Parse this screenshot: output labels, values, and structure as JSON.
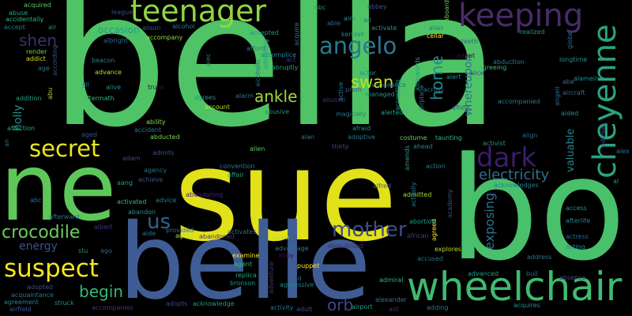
{
  "words": [
    {
      "text": "bella",
      "color": "#4fc466"
    },
    {
      "text": "sue",
      "color": "#e2e11a"
    },
    {
      "text": "bo",
      "color": "#49c06b"
    },
    {
      "text": "ne",
      "color": "#5ec75a"
    },
    {
      "text": "belle",
      "color": "#3f5d94"
    },
    {
      "text": "wheelchair",
      "color": "#3ebb70"
    },
    {
      "text": "cheyenne",
      "color": "#2aa27f"
    },
    {
      "text": "keeping",
      "color": "#472c6a"
    },
    {
      "text": "teenager",
      "color": "#8fd544"
    },
    {
      "text": "angelo",
      "color": "#2a788e"
    },
    {
      "text": "secret",
      "color": "#ece51b"
    },
    {
      "text": "suspect",
      "color": "#f4e61e"
    },
    {
      "text": "crocodile",
      "color": "#6ccd5a"
    },
    {
      "text": "mother",
      "color": "#3d4c89"
    },
    {
      "text": "dark",
      "color": "#3b1b6a"
    },
    {
      "text": "electricity",
      "color": "#2e6f8e"
    },
    {
      "text": "shen",
      "color": "#3a2f6b"
    },
    {
      "text": "swan",
      "color": "#c2df23"
    },
    {
      "text": "home",
      "color": "#23898e"
    },
    {
      "text": "ankle",
      "color": "#a0da39"
    },
    {
      "text": "us",
      "color": "#35608d"
    },
    {
      "text": "begin",
      "color": "#36b677"
    },
    {
      "text": "orb",
      "color": "#414487"
    },
    {
      "text": "energy",
      "color": "#3b528b"
    },
    {
      "text": "holly",
      "color": "#238a8d"
    },
    {
      "text": "exposing",
      "color": "#2c728e"
    },
    {
      "text": "whereupon",
      "color": "#2e6e8e"
    },
    {
      "text": "valuable",
      "color": "#27808e"
    },
    {
      "text": "acquired",
      "color": "#5ec962"
    },
    {
      "text": "abuse",
      "color": "#22a884"
    },
    {
      "text": "accidentally",
      "color": "#31b57b"
    },
    {
      "text": "accept",
      "color": "#2a788e"
    },
    {
      "text": "air",
      "color": "#21918c"
    },
    {
      "text": "render",
      "color": "#6ece58"
    },
    {
      "text": "addict",
      "color": "#d2e21b"
    },
    {
      "text": "according",
      "color": "#3b528b"
    },
    {
      "text": "age",
      "color": "#2c728e"
    },
    {
      "text": "addition",
      "color": "#1f9e89"
    },
    {
      "text": "abu",
      "color": "#a0da39"
    },
    {
      "text": "affection",
      "color": "#22a884"
    },
    {
      "text": "aged",
      "color": "#3b528b"
    },
    {
      "text": "abducted",
      "color": "#7ad151"
    },
    {
      "text": "accident",
      "color": "#2a788e"
    },
    {
      "text": "ability",
      "color": "#8fd744"
    },
    {
      "text": "adam",
      "color": "#414487"
    },
    {
      "text": "agency",
      "color": "#2c728e"
    },
    {
      "text": "aang",
      "color": "#1f9e89"
    },
    {
      "text": "achieve",
      "color": "#3b528b"
    },
    {
      "text": "activated",
      "color": "#35b779"
    },
    {
      "text": "abandon",
      "color": "#21918c"
    },
    {
      "text": "afterward",
      "color": "#2a788e"
    },
    {
      "text": "albert",
      "color": "#46327e"
    },
    {
      "text": "stu",
      "color": "#21918c"
    },
    {
      "text": "ago",
      "color": "#31688e"
    },
    {
      "text": "adopted",
      "color": "#3e4989"
    },
    {
      "text": "acquaintance",
      "color": "#2a788e"
    },
    {
      "text": "agreement",
      "color": "#26828e"
    },
    {
      "text": "airfield",
      "color": "#3b528b"
    },
    {
      "text": "struck",
      "color": "#21918c"
    },
    {
      "text": "accompanies",
      "color": "#46327e"
    },
    {
      "text": "adopts",
      "color": "#414487"
    },
    {
      "text": "acknowledge",
      "color": "#1f9e89"
    },
    {
      "text": "aging",
      "color": "#b5de2b"
    },
    {
      "text": "abandoned",
      "color": "#46327e"
    },
    {
      "text": "provided",
      "color": "#2c728e"
    },
    {
      "text": "aide",
      "color": "#2a788e"
    },
    {
      "text": "activates",
      "color": "#31688e"
    },
    {
      "text": "examine",
      "color": "#fde725"
    },
    {
      "text": "agent",
      "color": "#35b779"
    },
    {
      "text": "replica",
      "color": "#22a884"
    },
    {
      "text": "bronson",
      "color": "#21918c"
    },
    {
      "text": "agree",
      "color": "#b5de2b"
    },
    {
      "text": "advantage",
      "color": "#2a788e"
    },
    {
      "text": "abby",
      "color": "#440154"
    },
    {
      "text": "puppet",
      "color": "#fde725"
    },
    {
      "text": "acid",
      "color": "#31688e"
    },
    {
      "text": "aggressive",
      "color": "#26828e"
    },
    {
      "text": "adventure",
      "color": "#46327e"
    },
    {
      "text": "activity",
      "color": "#2c728e"
    },
    {
      "text": "adult",
      "color": "#3e4989"
    },
    {
      "text": "airport",
      "color": "#1f9e89"
    },
    {
      "text": "alexander",
      "color": "#2a788e"
    },
    {
      "text": "aid",
      "color": "#482878"
    },
    {
      "text": "admiral",
      "color": "#35b779"
    },
    {
      "text": "adding",
      "color": "#2a788e"
    },
    {
      "text": "acquires",
      "color": "#21918c"
    },
    {
      "text": "advanced",
      "color": "#1f9e89"
    },
    {
      "text": "buil",
      "color": "#2c728e"
    },
    {
      "text": "absence",
      "color": "#414487"
    },
    {
      "text": "address",
      "color": "#2a788e"
    },
    {
      "text": "acting",
      "color": "#21918c"
    },
    {
      "text": "actress",
      "color": "#31688e"
    },
    {
      "text": "aforementioned",
      "color": "#2c728e"
    },
    {
      "text": "advises",
      "color": "#3e4989"
    },
    {
      "text": "afterlife",
      "color": "#26828e"
    },
    {
      "text": "access",
      "color": "#21918c"
    },
    {
      "text": "acknowledges",
      "color": "#2a788e"
    },
    {
      "text": "academy",
      "color": "#3b528b"
    },
    {
      "text": "accused",
      "color": "#2c728e"
    },
    {
      "text": "african",
      "color": "#414487"
    },
    {
      "text": "explores",
      "color": "#b5de2b"
    },
    {
      "text": "agreed",
      "color": "#fde725"
    },
    {
      "text": "abortion",
      "color": "#1f9e89"
    },
    {
      "text": "admitted",
      "color": "#a0da39"
    },
    {
      "text": "actually",
      "color": "#2c728e"
    },
    {
      "text": "alfred",
      "color": "#31688e"
    },
    {
      "text": "action",
      "color": "#2a788e"
    },
    {
      "text": "amends",
      "color": "#1f9e89"
    },
    {
      "text": "ahead",
      "color": "#26828e"
    },
    {
      "text": "costume",
      "color": "#6ece58"
    },
    {
      "text": "taunting",
      "color": "#35b779"
    },
    {
      "text": "activist",
      "color": "#21918c"
    },
    {
      "text": "align",
      "color": "#31688e"
    },
    {
      "text": "alan",
      "color": "#2c728e"
    },
    {
      "text": "thirty",
      "color": "#3e4989"
    },
    {
      "text": "adoptive",
      "color": "#2a788e"
    },
    {
      "text": "afraid",
      "color": "#21918c"
    },
    {
      "text": "alien",
      "color": "#5ec962"
    },
    {
      "text": "affair",
      "color": "#1f9e89"
    },
    {
      "text": "advice",
      "color": "#26828e"
    },
    {
      "text": "abandoning",
      "color": "#482878"
    },
    {
      "text": "convention",
      "color": "#2a788e"
    },
    {
      "text": "admits",
      "color": "#3b528b"
    },
    {
      "text": "abruptly",
      "color": "#1f9e89"
    },
    {
      "text": "admitting",
      "color": "#1f9e89"
    },
    {
      "text": "accomplice",
      "color": "#26828e"
    },
    {
      "text": "alcoholic",
      "color": "#31688e"
    },
    {
      "text": "afford",
      "color": "#2a788e"
    },
    {
      "text": "accepted",
      "color": "#21918c"
    },
    {
      "text": "act",
      "color": "#46327e"
    },
    {
      "text": "accompany",
      "color": "#8fd744"
    },
    {
      "text": "alcohol",
      "color": "#2a788e"
    },
    {
      "text": "alison",
      "color": "#3b528b"
    },
    {
      "text": "occasion",
      "color": "#1f9e89"
    },
    {
      "text": "league",
      "color": "#3e4989"
    },
    {
      "text": "albright",
      "color": "#31688e"
    },
    {
      "text": "advance",
      "color": "#b5de2b"
    },
    {
      "text": "beacon",
      "color": "#26828e"
    },
    {
      "text": "jill",
      "color": "#2a788e"
    },
    {
      "text": "alive",
      "color": "#21918c"
    },
    {
      "text": "trunk",
      "color": "#440154"
    },
    {
      "text": "aftermath",
      "color": "#35b779"
    },
    {
      "text": "agrees",
      "color": "#21918c"
    },
    {
      "text": "account",
      "color": "#b5de2b"
    },
    {
      "text": "alarm",
      "color": "#2c728e"
    },
    {
      "text": "abusive",
      "color": "#21918c"
    },
    {
      "text": "magically",
      "color": "#2a788e"
    },
    {
      "text": "alerted",
      "color": "#1f9e89"
    },
    {
      "text": "managed",
      "color": "#21918c"
    },
    {
      "text": "accepting",
      "color": "#1f9e89"
    },
    {
      "text": "prom",
      "color": "#3b528b"
    },
    {
      "text": "abused",
      "color": "#482878"
    },
    {
      "text": "active",
      "color": "#2a788e"
    },
    {
      "text": "actor",
      "color": "#21918c"
    },
    {
      "text": "vengeance",
      "color": "#2c728e"
    },
    {
      "text": "abc",
      "color": "#21918c"
    },
    {
      "text": "abbey",
      "color": "#3b528b"
    },
    {
      "text": "aim",
      "color": "#21918c"
    },
    {
      "text": "ad",
      "color": "#2c728e"
    },
    {
      "text": "kendall",
      "color": "#26828e"
    },
    {
      "text": "activate",
      "color": "#21918c"
    },
    {
      "text": "acquire",
      "color": "#2a788e"
    },
    {
      "text": "able",
      "color": "#31688e"
    },
    {
      "text": "alias",
      "color": "#2a788e"
    },
    {
      "text": "cellar",
      "color": "#fde725"
    },
    {
      "text": "aboard",
      "color": "#6ece58"
    },
    {
      "text": "realized",
      "color": "#21918c"
    },
    {
      "text": "globe",
      "color": "#2c728e"
    },
    {
      "text": "teeth",
      "color": "#31688e"
    },
    {
      "text": "adopt",
      "color": "#440154"
    },
    {
      "text": "abduction",
      "color": "#2a788e"
    },
    {
      "text": "agreeing",
      "color": "#35b779"
    },
    {
      "text": "alice",
      "color": "#3b528b"
    },
    {
      "text": "alert",
      "color": "#21918c"
    },
    {
      "text": "afterwards",
      "color": "#1f9e89"
    },
    {
      "text": "across",
      "color": "#2c728e"
    },
    {
      "text": "affect",
      "color": "#31688e"
    },
    {
      "text": "accompanied",
      "color": "#2a788e"
    },
    {
      "text": "aided",
      "color": "#21918c"
    },
    {
      "text": "abe",
      "color": "#2a788e"
    },
    {
      "text": "alamein",
      "color": "#21918c"
    },
    {
      "text": "longtime",
      "color": "#21918c"
    },
    {
      "text": "aircraft",
      "color": "#31688e"
    },
    {
      "text": "angeli",
      "color": "#2c728e"
    },
    {
      "text": "advises",
      "color": "#3b528b"
    },
    {
      "text": "alex",
      "color": "#2a788e"
    },
    {
      "text": "al",
      "color": "#21918c"
    },
    {
      "text": "alec",
      "color": "#2c728e"
    },
    {
      "text": "an",
      "color": "#31688e"
    },
    {
      "text": "abc",
      "color": "#2c728e"
    },
    {
      "text": "airplane",
      "color": "#2a788e"
    },
    {
      "text": "abandoned",
      "color": "#482878"
    }
  ]
}
